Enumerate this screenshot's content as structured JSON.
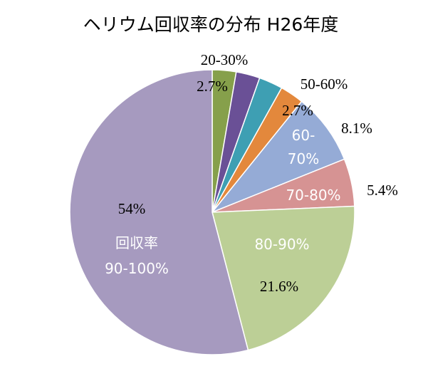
{
  "chart_data": {
    "type": "pie",
    "title": "ヘリウム回収率の分布 H26年度",
    "slices": [
      {
        "label": "20-30%",
        "value": 2.7,
        "value_label": "2.7%",
        "color": "#86a04b"
      },
      {
        "label": "",
        "value": 2.7,
        "value_label": "",
        "color": "#6a5096"
      },
      {
        "label": "",
        "value": 2.7,
        "value_label": "",
        "color": "#3e9fb3"
      },
      {
        "label": "50-60%",
        "value": 2.7,
        "value_label": "2.7%",
        "color": "#e3883c"
      },
      {
        "label": "60-70%",
        "value": 8.1,
        "value_label": "8.1%",
        "color": "#95abd6"
      },
      {
        "label": "70-80%",
        "value": 5.4,
        "value_label": "5.4%",
        "color": "#d69393"
      },
      {
        "label": "80-90%",
        "value": 21.6,
        "value_label": "21.6%",
        "color": "#bccf96"
      },
      {
        "label": "回収率 90-100%",
        "value": 54,
        "value_label": "54%",
        "color": "#a69abf"
      }
    ],
    "label_parts": {
      "s4_line1": "60-",
      "s4_line2": "70%",
      "s7_line1": "回収率",
      "s7_line2": "90-100%"
    }
  }
}
